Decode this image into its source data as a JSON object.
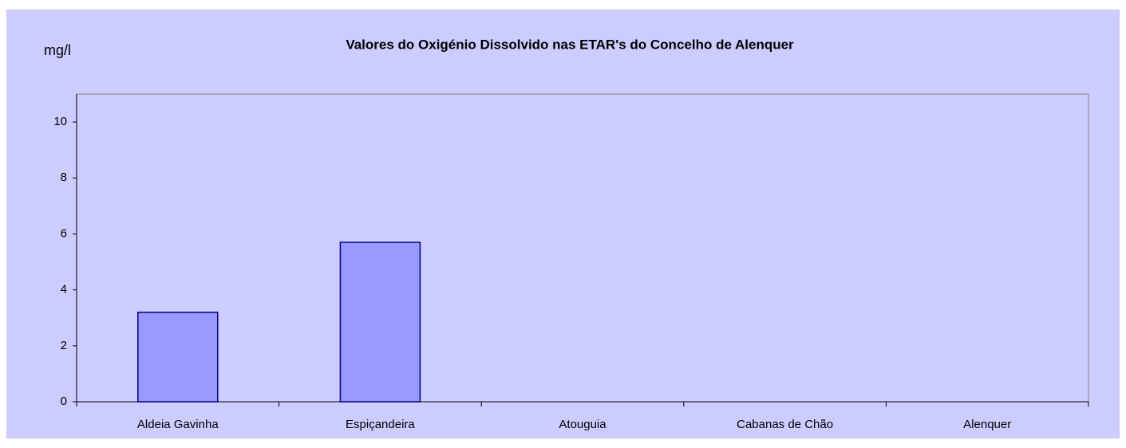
{
  "chart_data": {
    "type": "bar",
    "title": "Valores do Oxigénio Dissolvido nas ETAR's do Concelho de Alenquer",
    "ylabel": "mg/l",
    "categories": [
      "Aldeia Gavinha",
      "Espiçandeira",
      "Atouguia",
      "Cabanas de Chão",
      "Alenquer"
    ],
    "values": [
      3.2,
      5.7,
      null,
      null,
      null
    ],
    "color": "#9999ff",
    "ylim": [
      0,
      11
    ],
    "yticks": [
      0,
      2,
      4,
      6,
      8,
      10
    ],
    "grid": false
  }
}
